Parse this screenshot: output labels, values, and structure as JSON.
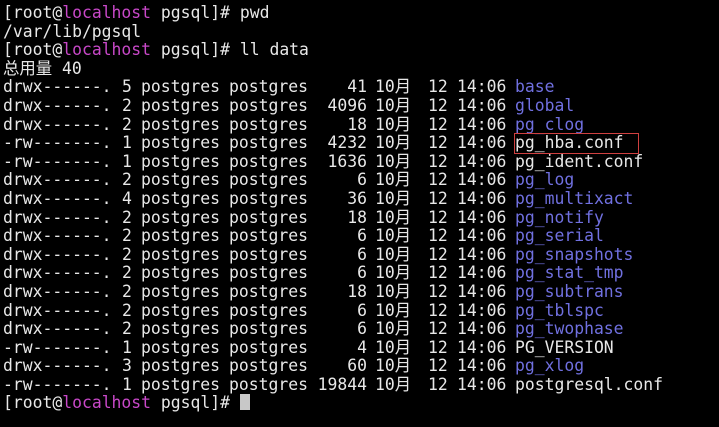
{
  "prompt": {
    "open": "[root@",
    "host": "localhost",
    "rest": " pgsql]# "
  },
  "commands": [
    "pwd",
    "ll data"
  ],
  "pwd_output": "/var/lib/pgsql",
  "total_line": "总用量 40",
  "colors": {
    "host": "#c848c8",
    "directory": "#7070e0",
    "highlight_box": "#d04040",
    "background": "#000000"
  },
  "highlighted_entry": "pg_hba.conf",
  "listing": [
    {
      "perm": "drwx------.",
      "links": "5",
      "owner": "postgres",
      "group": "postgres",
      "size": "41",
      "month": "10月",
      "day": "12",
      "time": "14:06",
      "name": "base",
      "dir": true
    },
    {
      "perm": "drwx------.",
      "links": "2",
      "owner": "postgres",
      "group": "postgres",
      "size": "4096",
      "month": "10月",
      "day": "12",
      "time": "14:06",
      "name": "global",
      "dir": true
    },
    {
      "perm": "drwx------.",
      "links": "2",
      "owner": "postgres",
      "group": "postgres",
      "size": "18",
      "month": "10月",
      "day": "12",
      "time": "14:06",
      "name": "pg_clog",
      "dir": true
    },
    {
      "perm": "-rw-------.",
      "links": "1",
      "owner": "postgres",
      "group": "postgres",
      "size": "4232",
      "month": "10月",
      "day": "12",
      "time": "14:06",
      "name": "pg_hba.conf",
      "dir": false
    },
    {
      "perm": "-rw-------.",
      "links": "1",
      "owner": "postgres",
      "group": "postgres",
      "size": "1636",
      "month": "10月",
      "day": "12",
      "time": "14:06",
      "name": "pg_ident.conf",
      "dir": false
    },
    {
      "perm": "drwx------.",
      "links": "2",
      "owner": "postgres",
      "group": "postgres",
      "size": "6",
      "month": "10月",
      "day": "12",
      "time": "14:06",
      "name": "pg_log",
      "dir": true
    },
    {
      "perm": "drwx------.",
      "links": "4",
      "owner": "postgres",
      "group": "postgres",
      "size": "36",
      "month": "10月",
      "day": "12",
      "time": "14:06",
      "name": "pg_multixact",
      "dir": true
    },
    {
      "perm": "drwx------.",
      "links": "2",
      "owner": "postgres",
      "group": "postgres",
      "size": "18",
      "month": "10月",
      "day": "12",
      "time": "14:06",
      "name": "pg_notify",
      "dir": true
    },
    {
      "perm": "drwx------.",
      "links": "2",
      "owner": "postgres",
      "group": "postgres",
      "size": "6",
      "month": "10月",
      "day": "12",
      "time": "14:06",
      "name": "pg_serial",
      "dir": true
    },
    {
      "perm": "drwx------.",
      "links": "2",
      "owner": "postgres",
      "group": "postgres",
      "size": "6",
      "month": "10月",
      "day": "12",
      "time": "14:06",
      "name": "pg_snapshots",
      "dir": true
    },
    {
      "perm": "drwx------.",
      "links": "2",
      "owner": "postgres",
      "group": "postgres",
      "size": "6",
      "month": "10月",
      "day": "12",
      "time": "14:06",
      "name": "pg_stat_tmp",
      "dir": true
    },
    {
      "perm": "drwx------.",
      "links": "2",
      "owner": "postgres",
      "group": "postgres",
      "size": "18",
      "month": "10月",
      "day": "12",
      "time": "14:06",
      "name": "pg_subtrans",
      "dir": true
    },
    {
      "perm": "drwx------.",
      "links": "2",
      "owner": "postgres",
      "group": "postgres",
      "size": "6",
      "month": "10月",
      "day": "12",
      "time": "14:06",
      "name": "pg_tblspc",
      "dir": true
    },
    {
      "perm": "drwx------.",
      "links": "2",
      "owner": "postgres",
      "group": "postgres",
      "size": "6",
      "month": "10月",
      "day": "12",
      "time": "14:06",
      "name": "pg_twophase",
      "dir": true
    },
    {
      "perm": "-rw-------.",
      "links": "1",
      "owner": "postgres",
      "group": "postgres",
      "size": "4",
      "month": "10月",
      "day": "12",
      "time": "14:06",
      "name": "PG_VERSION",
      "dir": false
    },
    {
      "perm": "drwx------.",
      "links": "3",
      "owner": "postgres",
      "group": "postgres",
      "size": "60",
      "month": "10月",
      "day": "12",
      "time": "14:06",
      "name": "pg_xlog",
      "dir": true
    },
    {
      "perm": "-rw-------.",
      "links": "1",
      "owner": "postgres",
      "group": "postgres",
      "size": "19844",
      "month": "10月",
      "day": "12",
      "time": "14:06",
      "name": "postgresql.conf",
      "dir": false
    }
  ]
}
